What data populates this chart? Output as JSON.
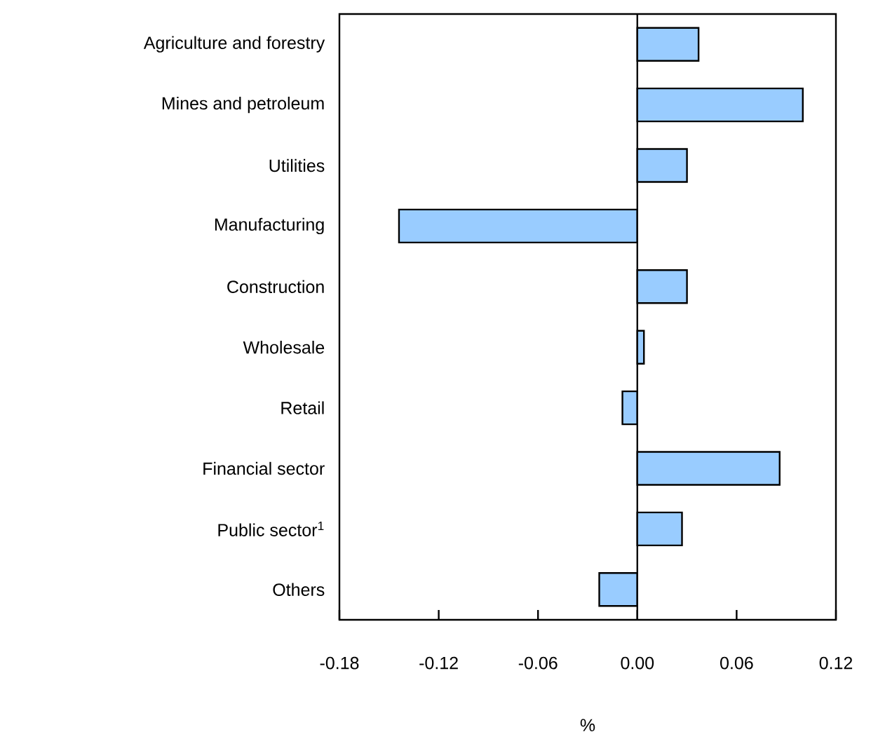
{
  "chart_data": {
    "type": "bar",
    "orientation": "horizontal",
    "xlabel": "%",
    "categories": [
      "Agriculture and forestry",
      "Mines and petroleum",
      "Utilities",
      "Manufacturing",
      "Construction",
      "Wholesale",
      "Retail",
      "Financial sector",
      "Public sector$^{1}$",
      "Others"
    ],
    "values": [
      0.037,
      0.1,
      0.03,
      -0.144,
      0.03,
      0.004,
      -0.009,
      0.086,
      0.027,
      -0.023
    ],
    "color": "#99ccff",
    "xlim": [
      -0.18,
      0.12
    ],
    "xticks": [
      -0.18,
      -0.12,
      -0.06,
      {
        "value": 0,
        "label": "0.00"
      },
      0.06,
      0.12
    ]
  }
}
